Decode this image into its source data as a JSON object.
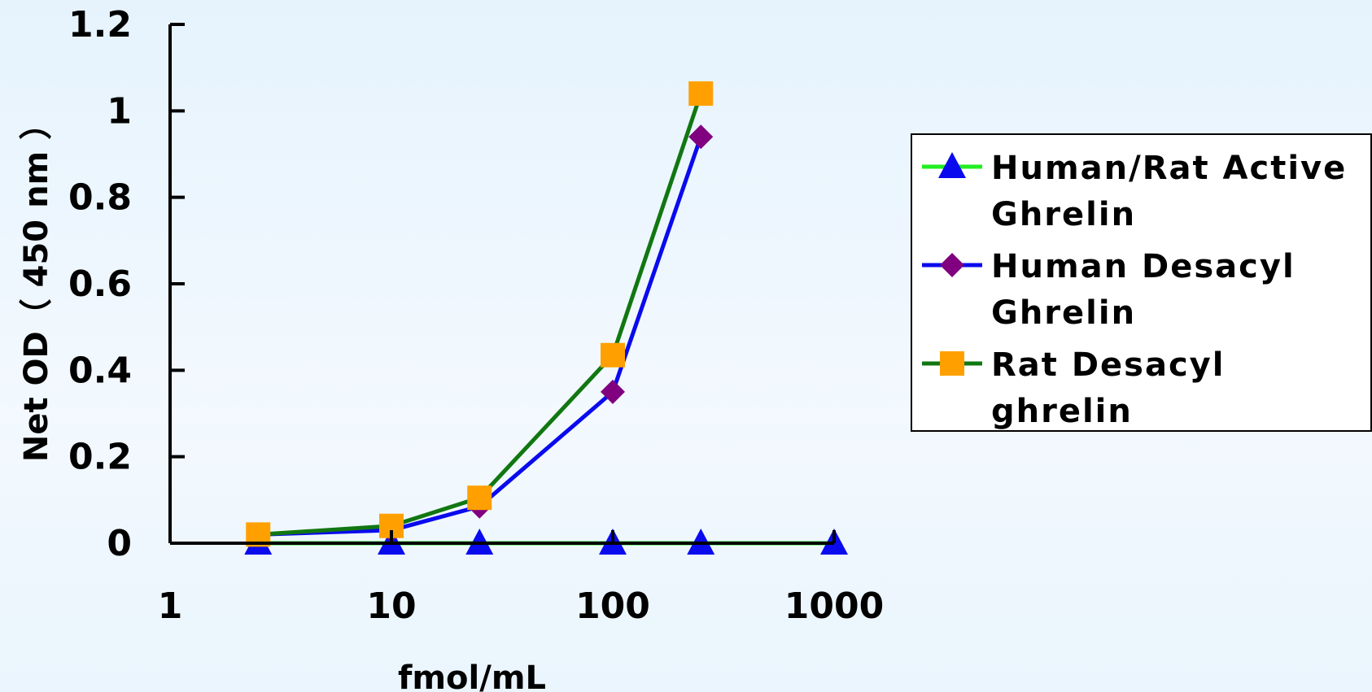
{
  "chart_data": {
    "type": "line",
    "x_scale": "log",
    "xlabel": "fmol/mL",
    "ylabel": "Net OD（ 450 nm ）",
    "xlim": [
      1,
      1000
    ],
    "ylim": [
      0,
      1.2
    ],
    "x_ticks": [
      "1",
      "10",
      "100",
      "1000"
    ],
    "y_ticks": [
      "0",
      "0.2",
      "0.4",
      "0.6",
      "0.8",
      "1",
      "1.2"
    ],
    "legend_position": "right",
    "series": [
      {
        "name": "Human/Rat Active Ghrelin",
        "legend_lines": [
          "Human/Rat Active",
          "Ghrelin"
        ],
        "color": "#22ee22",
        "marker": "triangle",
        "marker_color": "#0a0aee",
        "x": [
          2.5,
          10,
          25,
          100,
          250,
          1000
        ],
        "y": [
          0,
          0,
          0,
          0,
          0,
          0
        ]
      },
      {
        "name": "Human Desacyl Ghrelin",
        "legend_lines": [
          "Human Desacyl",
          "Ghrelin"
        ],
        "color": "#0a0aee",
        "marker": "diamond",
        "marker_color": "#800080",
        "x": [
          2.5,
          10,
          25,
          100,
          250
        ],
        "y": [
          0.02,
          0.03,
          0.085,
          0.35,
          0.94
        ]
      },
      {
        "name": "Rat Desacyl ghrelin",
        "legend_lines": [
          "Rat Desacyl",
          "ghrelin"
        ],
        "color": "#117711",
        "marker": "square",
        "marker_color": "#ffa000",
        "x": [
          2.5,
          10,
          25,
          100,
          250
        ],
        "y": [
          0.02,
          0.04,
          0.105,
          0.435,
          1.04
        ]
      }
    ]
  }
}
